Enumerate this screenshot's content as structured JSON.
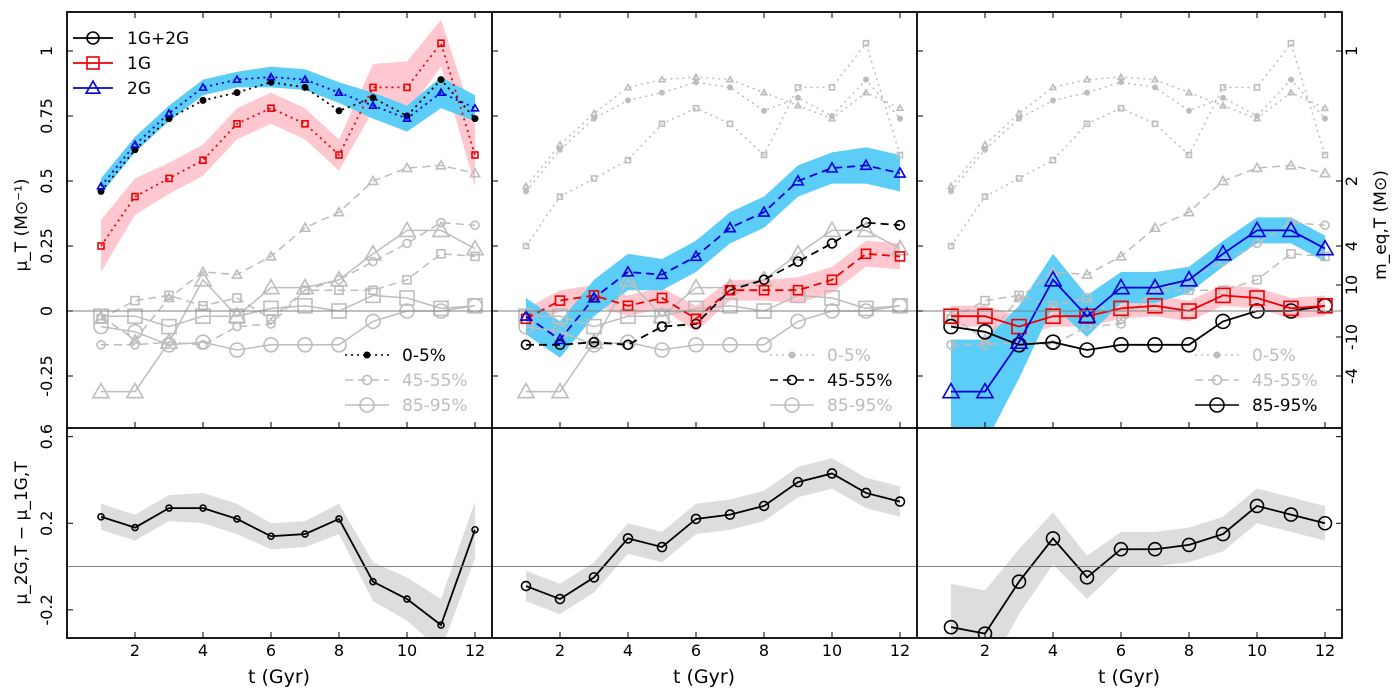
{
  "chart_data": {
    "type": "line",
    "x_label": "t (Gyr)",
    "x_ticks": [
      2,
      4,
      6,
      8,
      10,
      12
    ],
    "x_lim": [
      0,
      12.5
    ],
    "top": {
      "ylabel_left": "μ_T (M⊙⁻¹)",
      "ylabel_right": "m_eq,T (M⊙)",
      "y_lim": [
        -0.45,
        1.15
      ],
      "y_ticks": [
        -0.25,
        0,
        0.25,
        0.5,
        0.75,
        1
      ],
      "y_tick_labels": [
        "-0.25",
        "0",
        "0.25",
        "0.5",
        "0.75",
        "1"
      ],
      "right_ticks": [
        {
          "label": "1",
          "value": 1.0
        },
        {
          "label": "2",
          "value": 0.5
        },
        {
          "label": "4",
          "value": 0.25
        },
        {
          "label": "10",
          "value": 0.1
        },
        {
          "label": "-10",
          "value": -0.1
        },
        {
          "label": "-4",
          "value": -0.25
        }
      ],
      "population_legend": [
        {
          "name": "1G+2G",
          "color": "#000000",
          "marker": "circle"
        },
        {
          "name": "1G",
          "color": "#ee0000",
          "marker": "square"
        },
        {
          "name": "2G",
          "color": "#0000dd",
          "marker": "triangle"
        }
      ],
      "bin_legend": [
        {
          "name": "0-5%",
          "dash": "dot"
        },
        {
          "name": "45-55%",
          "dash": "dash"
        },
        {
          "name": "85-95%",
          "dash": "solid"
        }
      ],
      "bins": [
        {
          "bin": "0-5%",
          "all": [
            0.46,
            0.62,
            0.74,
            0.81,
            0.84,
            0.88,
            0.86,
            0.77,
            0.82,
            0.75,
            0.89,
            0.74
          ],
          "g1": [
            0.25,
            0.44,
            0.51,
            0.58,
            0.72,
            0.78,
            0.72,
            0.6,
            0.86,
            0.86,
            1.03,
            0.6
          ],
          "g2": [
            0.48,
            0.64,
            0.76,
            0.86,
            0.89,
            0.9,
            0.89,
            0.84,
            0.79,
            0.74,
            0.84,
            0.78
          ],
          "g1_err": [
            0.1,
            0.07,
            0.06,
            0.06,
            0.06,
            0.06,
            0.06,
            0.06,
            0.09,
            0.1,
            0.09,
            0.12
          ],
          "g2_err": [
            0.03,
            0.03,
            0.03,
            0.03,
            0.03,
            0.04,
            0.04,
            0.04,
            0.05,
            0.05,
            0.06,
            0.05
          ]
        },
        {
          "bin": "45-55%",
          "all": [
            -0.13,
            -0.13,
            -0.12,
            -0.13,
            -0.06,
            -0.05,
            0.08,
            0.12,
            0.19,
            0.26,
            0.34,
            0.33
          ],
          "g1": [
            -0.03,
            0.04,
            0.06,
            0.02,
            0.05,
            -0.03,
            0.08,
            0.08,
            0.08,
            0.12,
            0.22,
            0.21
          ],
          "g2": [
            -0.02,
            -0.11,
            0.05,
            0.15,
            0.14,
            0.21,
            0.32,
            0.38,
            0.5,
            0.55,
            0.56,
            0.53
          ],
          "g1_err": [
            0.04,
            0.04,
            0.04,
            0.04,
            0.04,
            0.05,
            0.04,
            0.04,
            0.05,
            0.05,
            0.05,
            0.05
          ],
          "g2_err": [
            0.07,
            0.07,
            0.07,
            0.07,
            0.06,
            0.06,
            0.06,
            0.06,
            0.06,
            0.06,
            0.07,
            0.07
          ]
        },
        {
          "bin": "85-95%",
          "all": [
            -0.06,
            -0.08,
            -0.13,
            -0.12,
            -0.15,
            -0.13,
            -0.13,
            -0.13,
            -0.04,
            0.0,
            0.0,
            0.02
          ],
          "g1": [
            -0.02,
            -0.02,
            -0.06,
            -0.02,
            -0.02,
            0.01,
            0.02,
            0.0,
            0.06,
            0.05,
            0.01,
            0.02
          ],
          "g2": [
            -0.31,
            -0.31,
            -0.12,
            0.12,
            -0.02,
            0.09,
            0.09,
            0.12,
            0.22,
            0.31,
            0.31,
            0.24
          ],
          "g1_err": [
            0.04,
            0.04,
            0.04,
            0.04,
            0.04,
            0.04,
            0.04,
            0.04,
            0.04,
            0.04,
            0.04,
            0.04
          ],
          "g2_err": [
            0.2,
            0.2,
            0.14,
            0.1,
            0.08,
            0.06,
            0.06,
            0.05,
            0.05,
            0.05,
            0.05,
            0.05
          ]
        }
      ]
    },
    "bottom": {
      "ylabel": "μ_2G,T − μ_1G,T",
      "y_lim": [
        -0.33,
        0.64
      ],
      "y_ticks": [
        -0.2,
        0.2,
        0.6
      ],
      "y_tick_labels": [
        "-0.2",
        "0.2",
        "0.6"
      ],
      "diffs": [
        [
          0.23,
          0.18,
          0.27,
          0.27,
          0.22,
          0.14,
          0.15,
          0.22,
          -0.07,
          -0.15,
          -0.27,
          0.17
        ],
        [
          -0.09,
          -0.15,
          -0.05,
          0.13,
          0.09,
          0.22,
          0.24,
          0.28,
          0.39,
          0.43,
          0.34,
          0.3
        ],
        [
          -0.28,
          -0.31,
          -0.07,
          0.13,
          -0.05,
          0.08,
          0.08,
          0.1,
          0.15,
          0.28,
          0.24,
          0.2
        ]
      ],
      "diff_err": [
        [
          0.06,
          0.06,
          0.06,
          0.07,
          0.07,
          0.06,
          0.06,
          0.07,
          0.09,
          0.1,
          0.12,
          0.13
        ],
        [
          0.07,
          0.07,
          0.07,
          0.07,
          0.07,
          0.07,
          0.07,
          0.07,
          0.07,
          0.07,
          0.07,
          0.07
        ],
        [
          0.2,
          0.2,
          0.15,
          0.12,
          0.1,
          0.08,
          0.08,
          0.08,
          0.08,
          0.08,
          0.08,
          0.08
        ]
      ]
    },
    "colors": {
      "all": "#000000",
      "g1": "#ee0000",
      "g2": "#0000dd",
      "g1_band": "#ffc8d0",
      "g2_band": "#5ccdf6",
      "gray_line": "#bdbdbd",
      "diff_band": "#dddddd"
    }
  }
}
